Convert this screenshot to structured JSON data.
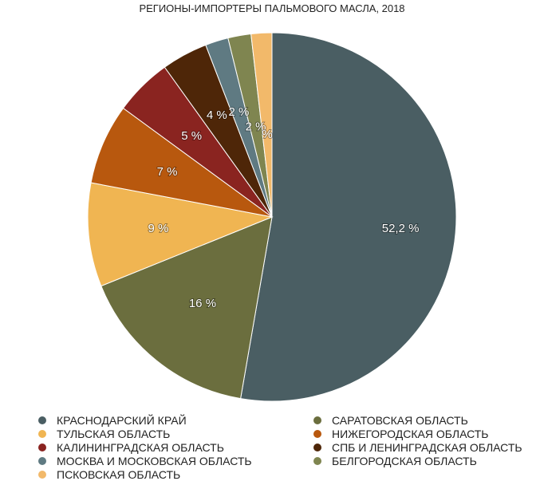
{
  "chart_data": {
    "type": "pie",
    "title": "РЕГИОНЫ-ИМПОРТЕРЫ ПАЛЬМОВОГО МАСЛА, 2018",
    "legend_placement": "bottom",
    "slices": [
      {
        "name": "КРАСНОДАРСКИЙ КРАЙ",
        "value": 52.2,
        "label": "52,2 %",
        "color": "#4a5e63"
      },
      {
        "name": "САРАТОВСКАЯ ОБЛАСТЬ",
        "value": 16,
        "label": "16 %",
        "color": "#6b6e3e"
      },
      {
        "name": "ТУЛЬСКАЯ ОБЛАСТЬ",
        "value": 9,
        "label": "9 %",
        "color": "#f0b552"
      },
      {
        "name": "НИЖЕГОРОДСКАЯ ОБЛАСТЬ",
        "value": 7,
        "label": "7 %",
        "color": "#b8580e"
      },
      {
        "name": "КАЛИНИНГРАДСКАЯ ОБЛАСТЬ",
        "value": 5,
        "label": "5 %",
        "color": "#8a2420"
      },
      {
        "name": "СПБ И ЛЕНИНГРАДСКАЯ ОБЛАСТЬ",
        "value": 4,
        "label": "4 %",
        "color": "#4e2608"
      },
      {
        "name": "МОСКВА И МОСКОВСКАЯ ОБЛАСТЬ",
        "value": 2,
        "label": "2 %",
        "color": "#5f7a82"
      },
      {
        "name": "БЕЛГОРОДСКАЯ ОБЛАСТЬ",
        "value": 2,
        "label": "2 %",
        "color": "#7f8550"
      },
      {
        "name": "ПСКОВСКАЯ ОБЛАСТЬ",
        "value": 1.8,
        "label": "%",
        "color": "#f2b96a"
      }
    ],
    "legend_order": [
      0,
      2,
      4,
      6,
      8,
      1,
      3,
      5,
      7
    ]
  }
}
